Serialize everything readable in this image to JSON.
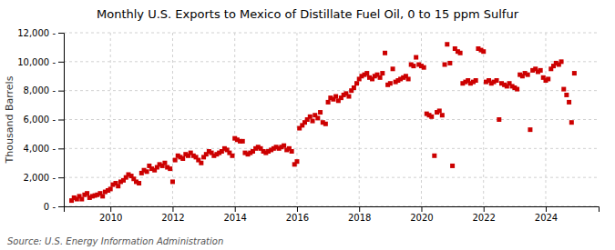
{
  "chart_data": {
    "type": "scatter",
    "title": "Monthly U.S. Exports to Mexico of Distillate Fuel Oil, 0 to 15 ppm Sulfur",
    "ylabel": "Thousand Barrels",
    "annotations": [
      "Source: U.S. Energy Information Administration"
    ],
    "color": "#cc0000",
    "marker": "square",
    "grid": true,
    "xlim": [
      2008.5,
      2025.7
    ],
    "xticks": [
      2010,
      2012,
      2014,
      2016,
      2018,
      2020,
      2022,
      2024
    ],
    "ylim": [
      0,
      12000
    ],
    "yticks": [
      {
        "value": 0,
        "label": "0 -"
      },
      {
        "value": 2000,
        "label": "2,000 -"
      },
      {
        "value": 4000,
        "label": "4,000 -"
      },
      {
        "value": 6000,
        "label": "6,000 -"
      },
      {
        "value": 8000,
        "label": "8,000 -"
      },
      {
        "value": 10000,
        "label": "10,000 -"
      },
      {
        "value": 12000,
        "label": "12,000 -"
      }
    ],
    "x": [
      2008.75,
      2008.83,
      2008.92,
      2009.0,
      2009.08,
      2009.17,
      2009.25,
      2009.33,
      2009.42,
      2009.5,
      2009.58,
      2009.67,
      2009.75,
      2009.83,
      2009.92,
      2010.0,
      2010.08,
      2010.17,
      2010.25,
      2010.33,
      2010.42,
      2010.5,
      2010.58,
      2010.67,
      2010.75,
      2010.83,
      2010.92,
      2011.0,
      2011.08,
      2011.17,
      2011.25,
      2011.33,
      2011.42,
      2011.5,
      2011.58,
      2011.67,
      2011.75,
      2011.83,
      2011.92,
      2012.0,
      2012.08,
      2012.17,
      2012.25,
      2012.33,
      2012.42,
      2012.5,
      2012.58,
      2012.67,
      2012.75,
      2012.83,
      2012.92,
      2013.0,
      2013.08,
      2013.17,
      2013.25,
      2013.33,
      2013.42,
      2013.5,
      2013.58,
      2013.67,
      2013.75,
      2013.83,
      2013.92,
      2014.0,
      2014.08,
      2014.17,
      2014.25,
      2014.33,
      2014.42,
      2014.5,
      2014.58,
      2014.67,
      2014.75,
      2014.83,
      2014.92,
      2015.0,
      2015.08,
      2015.17,
      2015.25,
      2015.33,
      2015.42,
      2015.5,
      2015.58,
      2015.67,
      2015.75,
      2015.83,
      2015.92,
      2016.0,
      2016.08,
      2016.17,
      2016.25,
      2016.33,
      2016.42,
      2016.5,
      2016.58,
      2016.67,
      2016.75,
      2016.83,
      2016.92,
      2017.0,
      2017.08,
      2017.17,
      2017.25,
      2017.33,
      2017.42,
      2017.5,
      2017.58,
      2017.67,
      2017.75,
      2017.83,
      2017.92,
      2018.0,
      2018.08,
      2018.17,
      2018.25,
      2018.33,
      2018.42,
      2018.5,
      2018.58,
      2018.67,
      2018.75,
      2018.83,
      2018.92,
      2019.0,
      2019.08,
      2019.17,
      2019.25,
      2019.33,
      2019.42,
      2019.5,
      2019.58,
      2019.67,
      2019.75,
      2019.83,
      2019.92,
      2020.0,
      2020.08,
      2020.17,
      2020.25,
      2020.33,
      2020.42,
      2020.5,
      2020.58,
      2020.67,
      2020.75,
      2020.83,
      2020.92,
      2021.0,
      2021.08,
      2021.17,
      2021.25,
      2021.33,
      2021.42,
      2021.5,
      2021.58,
      2021.67,
      2021.75,
      2021.83,
      2021.92,
      2022.0,
      2022.08,
      2022.17,
      2022.25,
      2022.33,
      2022.42,
      2022.5,
      2022.58,
      2022.67,
      2022.75,
      2022.83,
      2022.92,
      2023.0,
      2023.08,
      2023.17,
      2023.25,
      2023.33,
      2023.42,
      2023.5,
      2023.58,
      2023.67,
      2023.75,
      2023.83,
      2023.92,
      2024.0,
      2024.08,
      2024.17,
      2024.25,
      2024.33,
      2024.42,
      2024.5,
      2024.58,
      2024.67,
      2024.75,
      2024.83,
      2024.92
    ],
    "values": [
      400,
      600,
      500,
      700,
      500,
      800,
      900,
      600,
      700,
      750,
      800,
      900,
      700,
      1000,
      1100,
      1200,
      1500,
      1600,
      1400,
      1700,
      1800,
      2000,
      2200,
      2100,
      1900,
      1700,
      1600,
      2300,
      2500,
      2400,
      2800,
      2600,
      2500,
      2700,
      2900,
      2800,
      3000,
      2700,
      2600,
      1700,
      3200,
      3500,
      3400,
      3300,
      3600,
      3500,
      3700,
      3500,
      3400,
      3200,
      3000,
      3400,
      3600,
      3800,
      3700,
      3500,
      3600,
      3700,
      3800,
      4000,
      3900,
      3700,
      3500,
      4700,
      4600,
      4500,
      4500,
      3700,
      3600,
      3700,
      3800,
      4000,
      4100,
      4000,
      3800,
      3700,
      3800,
      3900,
      4000,
      4100,
      4000,
      4100,
      4200,
      3900,
      4000,
      3800,
      2900,
      3100,
      5400,
      5600,
      5800,
      6000,
      6200,
      5900,
      6300,
      6100,
      6500,
      5800,
      5700,
      7200,
      7500,
      7400,
      7600,
      7300,
      7500,
      7700,
      7800,
      7600,
      8000,
      8200,
      8500,
      8800,
      9000,
      9100,
      9200,
      8900,
      8800,
      9000,
      9100,
      8900,
      9200,
      10600,
      8400,
      8500,
      9500,
      8600,
      8700,
      8800,
      8900,
      9000,
      8800,
      9800,
      9700,
      10300,
      9800,
      9700,
      9600,
      6400,
      6300,
      6200,
      3500,
      6500,
      6600,
      6300,
      9800,
      11200,
      9900,
      2800,
      10900,
      10700,
      10600,
      8500,
      8600,
      8700,
      8500,
      8600,
      8700,
      10900,
      10800,
      10700,
      8600,
      8700,
      8500,
      8600,
      8700,
      6000,
      8500,
      8400,
      8300,
      8500,
      8300,
      8200,
      8100,
      9100,
      9000,
      9200,
      9100,
      5300,
      9400,
      9500,
      9300,
      9400,
      8900,
      8700,
      8800,
      9500,
      9700,
      9900,
      9800,
      10000,
      8100,
      7700,
      7200,
      5800,
      9200
    ]
  }
}
